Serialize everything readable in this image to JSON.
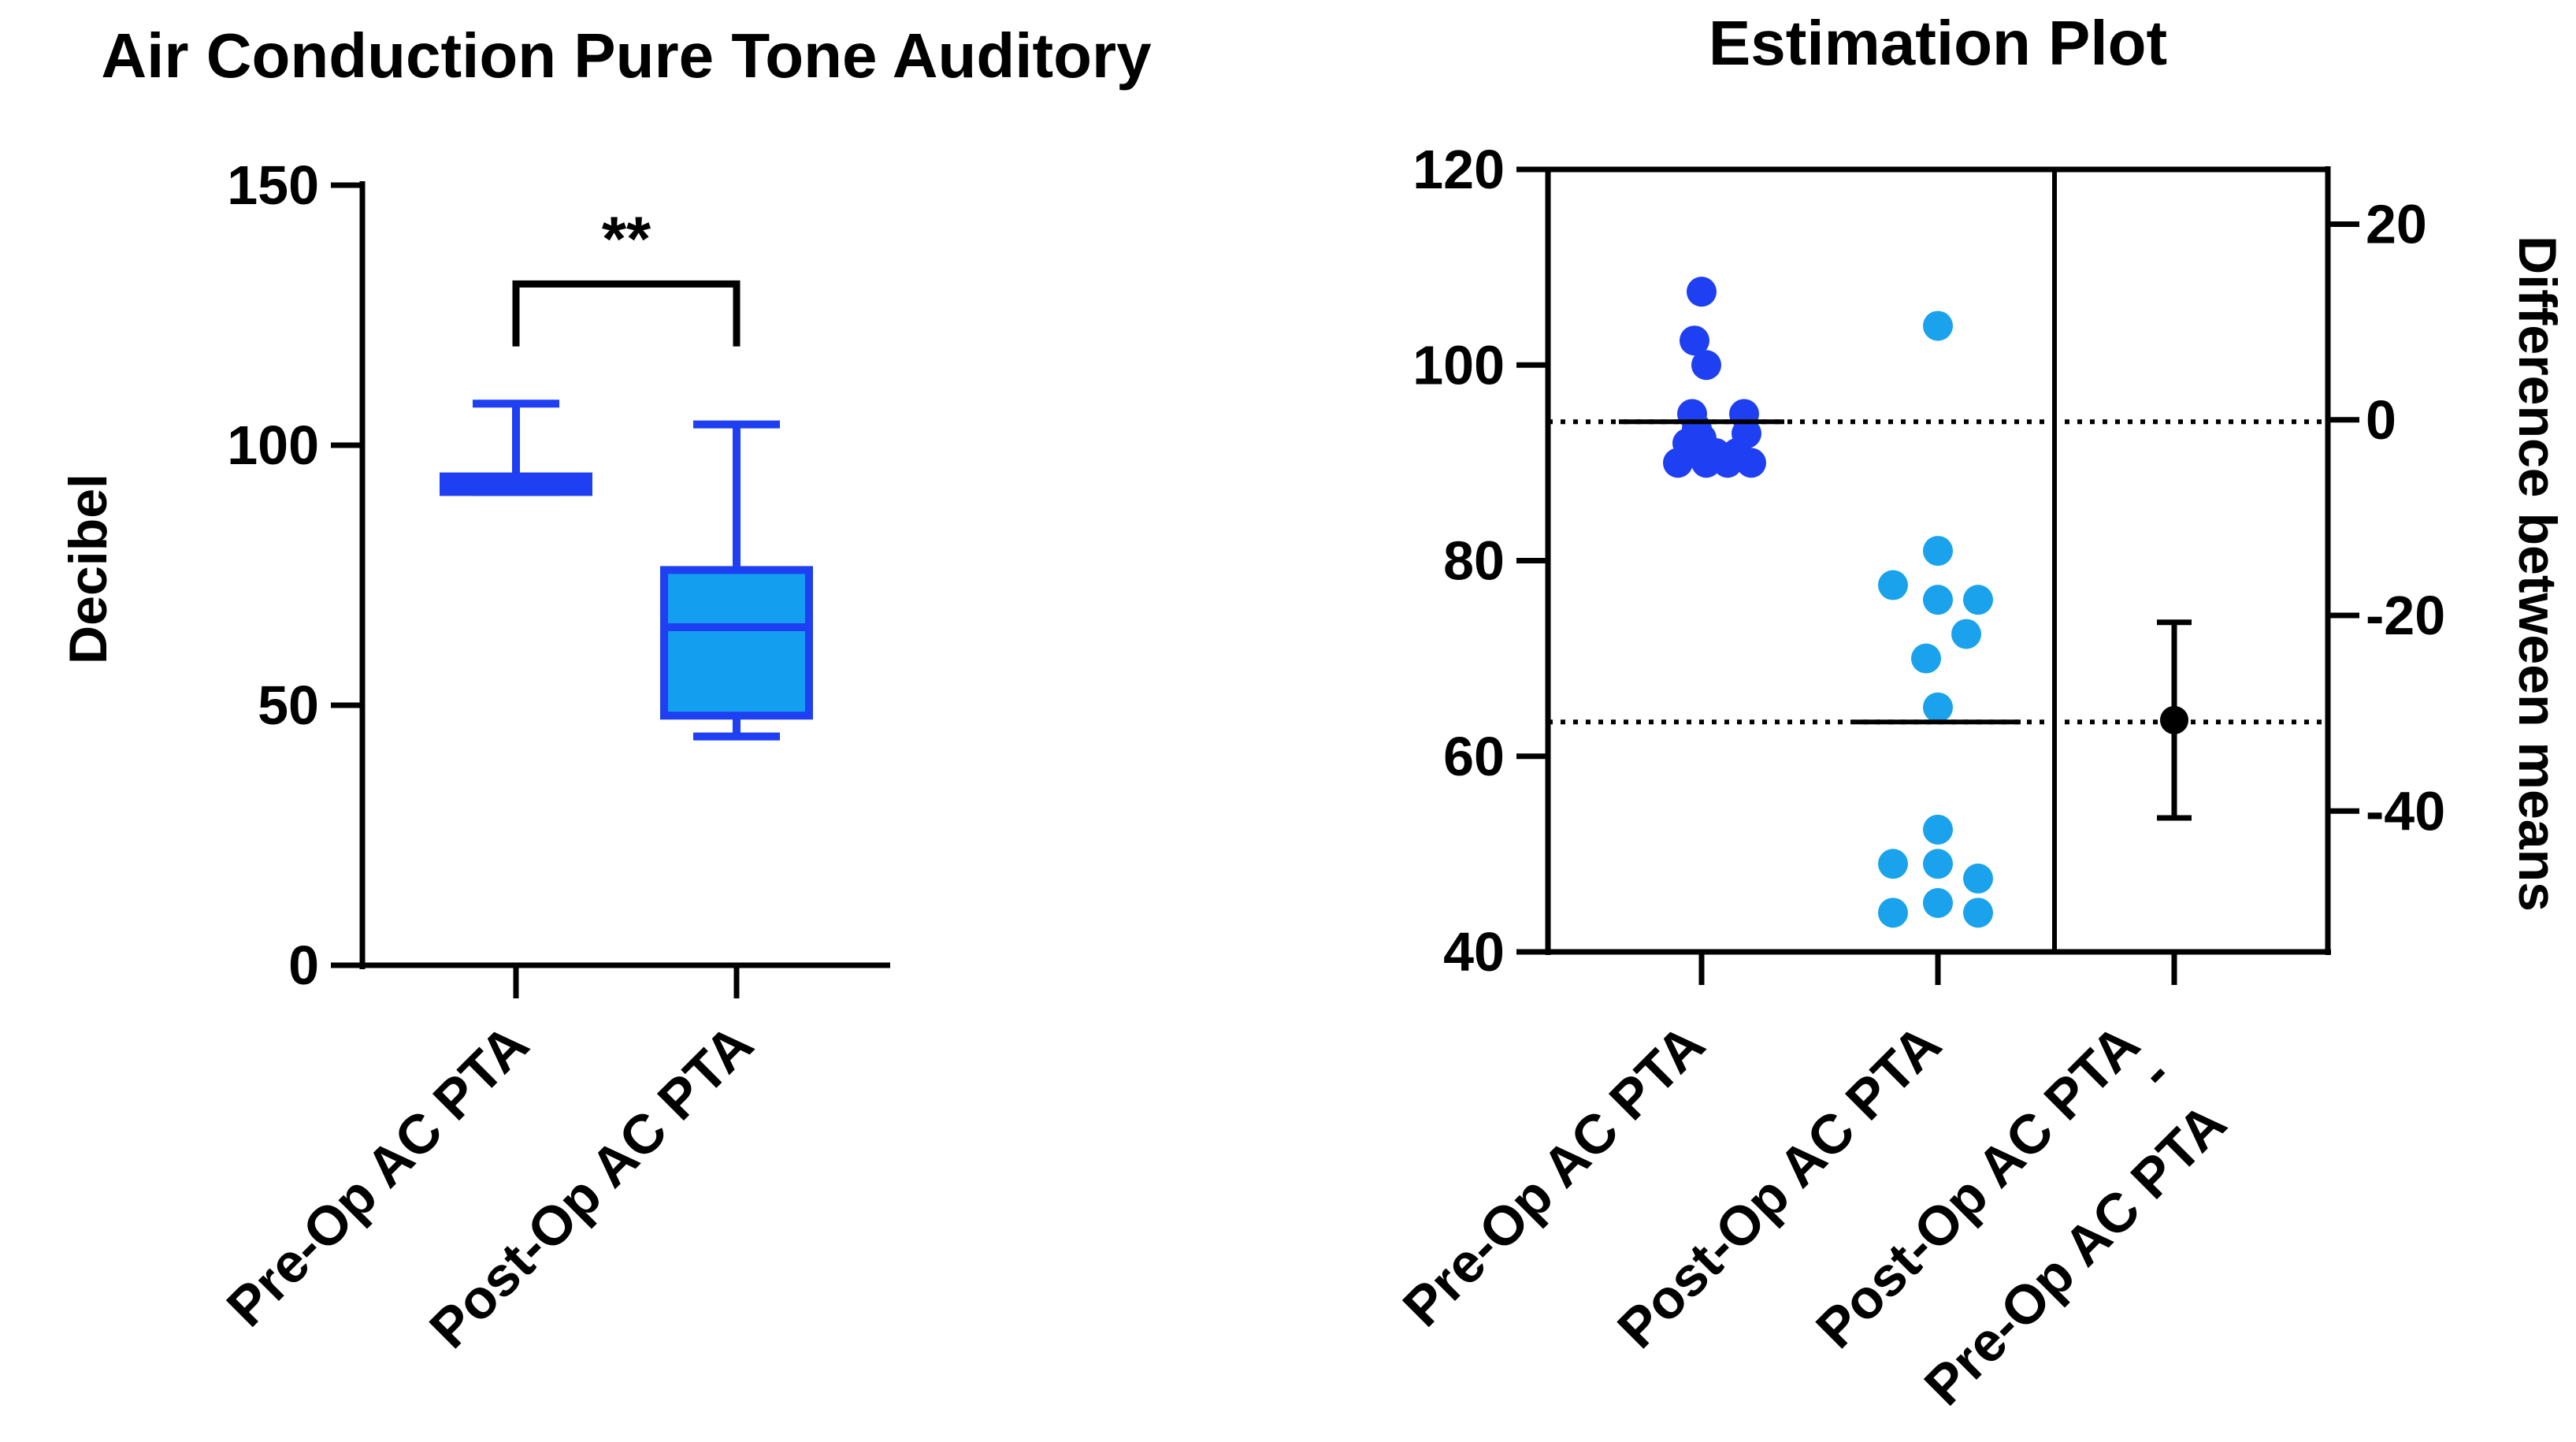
{
  "colors": {
    "pre": "#1f3ff2",
    "post": "#1aa3ec",
    "post_box_fill": "#149ef0",
    "ink": "#000000"
  },
  "chart_data": [
    {
      "type": "box",
      "title": "Air Conduction Pure Tone Auditory",
      "xlabel": "",
      "ylabel": "Decibel",
      "ylim": [
        0,
        150
      ],
      "yticks": [
        0,
        50,
        100,
        150
      ],
      "categories": [
        "Pre-Op AC PTA",
        "Post-Op AC PTA"
      ],
      "boxes": [
        {
          "name": "Pre-Op AC PTA",
          "min": 91,
          "q1": 91,
          "median": 93,
          "q3": 94,
          "max": 108
        },
        {
          "name": "Post-Op AC PTA",
          "min": 44,
          "q1": 48,
          "median": 65,
          "q3": 76,
          "max": 104
        }
      ],
      "significance": {
        "label": "**",
        "between": [
          "Pre-Op AC PTA",
          "Post-Op AC PTA"
        ],
        "bracket_y": 131,
        "tick_bottom_y": 119
      }
    },
    {
      "type": "scatter",
      "title": "Estimation Plot",
      "ylabel_right": "Difference between means",
      "ylim": [
        40,
        120
      ],
      "yticks": [
        40,
        60,
        80,
        100,
        120
      ],
      "ylim_right": [
        -54.4,
        25.6
      ],
      "yticks_right": [
        -40,
        -20,
        0,
        20
      ],
      "categories": [
        "Pre-Op AC PTA",
        "Post-Op AC PTA",
        "Post-Op AC PTA - Pre-Op AC PTA"
      ],
      "series": [
        {
          "name": "Pre-Op AC PTA",
          "color": "#1f3ff2",
          "mean": 94.2,
          "points": [
            {
              "offset": -0.1,
              "y": 90
            },
            {
              "offset": -0.06,
              "y": 92
            },
            {
              "offset": -0.02,
              "y": 93.5
            },
            {
              "offset": -0.03,
              "y": 91
            },
            {
              "offset": 0.0,
              "y": 92.5
            },
            {
              "offset": 0.02,
              "y": 90
            },
            {
              "offset": 0.06,
              "y": 91
            },
            {
              "offset": 0.11,
              "y": 90
            },
            {
              "offset": 0.15,
              "y": 91
            },
            {
              "offset": 0.19,
              "y": 93
            },
            {
              "offset": 0.21,
              "y": 90
            },
            {
              "offset": -0.04,
              "y": 95
            },
            {
              "offset": 0.18,
              "y": 95
            },
            {
              "offset": 0.02,
              "y": 100
            },
            {
              "offset": -0.03,
              "y": 102.5
            },
            {
              "offset": 0.0,
              "y": 107.5
            }
          ]
        },
        {
          "name": "Post-Op AC PTA",
          "color": "#1aa3ec",
          "mean": 63.5,
          "points": [
            {
              "offset": 0.0,
              "y": 104
            },
            {
              "offset": 0.0,
              "y": 81
            },
            {
              "offset": -0.19,
              "y": 77.5
            },
            {
              "offset": 0.0,
              "y": 76
            },
            {
              "offset": 0.17,
              "y": 76
            },
            {
              "offset": 0.12,
              "y": 72.5
            },
            {
              "offset": -0.05,
              "y": 70
            },
            {
              "offset": 0.0,
              "y": 65
            },
            {
              "offset": 0.0,
              "y": 52.5
            },
            {
              "offset": -0.19,
              "y": 49
            },
            {
              "offset": 0.0,
              "y": 49
            },
            {
              "offset": 0.17,
              "y": 47.5
            },
            {
              "offset": -0.19,
              "y": 44
            },
            {
              "offset": 0.0,
              "y": 45
            },
            {
              "offset": 0.17,
              "y": 44
            }
          ]
        }
      ],
      "difference": {
        "name": "Post-Op AC PTA - Pre-Op AC PTA",
        "mean": -30.7,
        "ci_low": -40.7,
        "ci_high": -20.7
      }
    }
  ],
  "labels": {
    "left_title": "Air Conduction Pure Tone Auditory",
    "left_ylabel": "Decibel",
    "left_sig": "**",
    "left_cat1": "Pre-Op AC PTA",
    "left_cat2": "Post-Op AC PTA",
    "right_title": "Estimation Plot",
    "right_ylabel": "Difference between means",
    "right_cat1": "Pre-Op AC PTA",
    "right_cat2": "Post-Op AC PTA",
    "right_cat3_line1": "Post-Op AC PTA",
    "right_cat3_dash": "-",
    "right_cat3_line2": "Pre-Op AC PTA"
  }
}
